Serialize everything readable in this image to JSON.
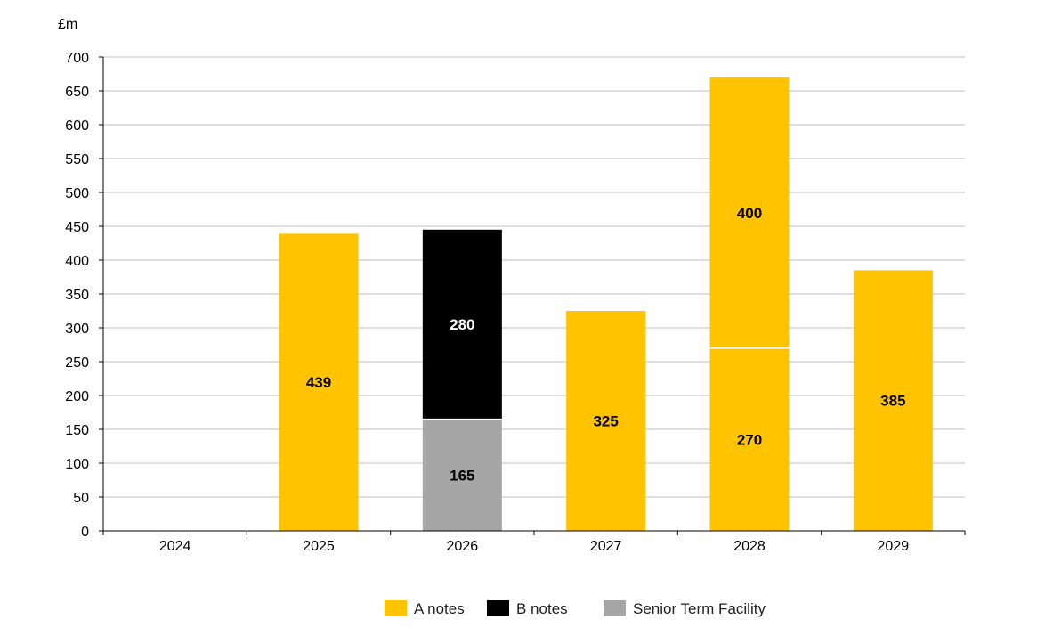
{
  "chart_data": {
    "type": "bar",
    "stacked": true,
    "y_unit_label": "£m",
    "title": "",
    "xlabel": "",
    "ylabel": "",
    "ylim": [
      0,
      700
    ],
    "y_ticks": [
      0,
      50,
      100,
      150,
      200,
      250,
      300,
      350,
      400,
      450,
      500,
      550,
      600,
      650,
      700
    ],
    "grid": true,
    "legend_position": "bottom",
    "categories": [
      "2024",
      "2025",
      "2026",
      "2027",
      "2028",
      "2029"
    ],
    "segments": [
      [],
      [
        {
          "series": "A notes",
          "value": 439,
          "label": "439"
        }
      ],
      [
        {
          "series": "Senior Term Facility",
          "value": 165,
          "label": "165"
        },
        {
          "series": "B notes",
          "value": 280,
          "label": "280"
        }
      ],
      [
        {
          "series": "A notes",
          "value": 325,
          "label": "325"
        }
      ],
      [
        {
          "series": "A notes",
          "value": 270,
          "label": "270"
        },
        {
          "series": "A notes",
          "value": 400,
          "label": "400"
        }
      ],
      [
        {
          "series": "A notes",
          "value": 385,
          "label": "385"
        }
      ]
    ],
    "series": [
      {
        "name": "A notes",
        "color": "#FFC300",
        "label_color": "#000000"
      },
      {
        "name": "B notes",
        "color": "#000000",
        "label_color": "#FFFFFF"
      },
      {
        "name": "Senior Term Facility",
        "color": "#A6A6A6",
        "label_color": "#000000"
      }
    ]
  }
}
